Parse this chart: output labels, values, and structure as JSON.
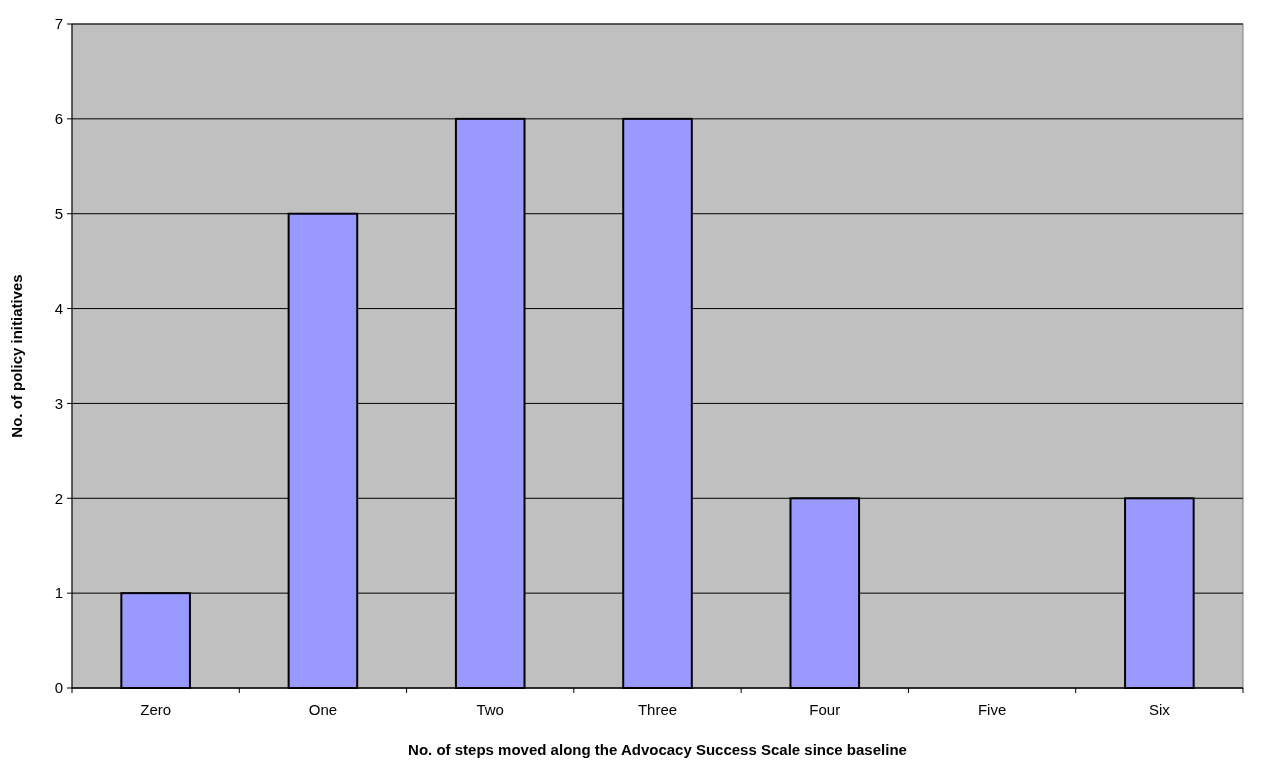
{
  "chart_data": {
    "type": "bar",
    "xlabel": "No. of steps moved along the Advocacy Success Scale since baseline",
    "ylabel": "No. of policy initiatives",
    "categories": [
      "Zero",
      "One",
      "Two",
      "Three",
      "Four",
      "Five",
      "Six"
    ],
    "values": [
      1,
      5,
      6,
      6,
      2,
      0,
      2
    ],
    "color": "#9999ff",
    "ylim": [
      0,
      7
    ],
    "yticks": [
      0,
      1,
      2,
      3,
      4,
      5,
      6,
      7
    ],
    "grid": "y"
  }
}
